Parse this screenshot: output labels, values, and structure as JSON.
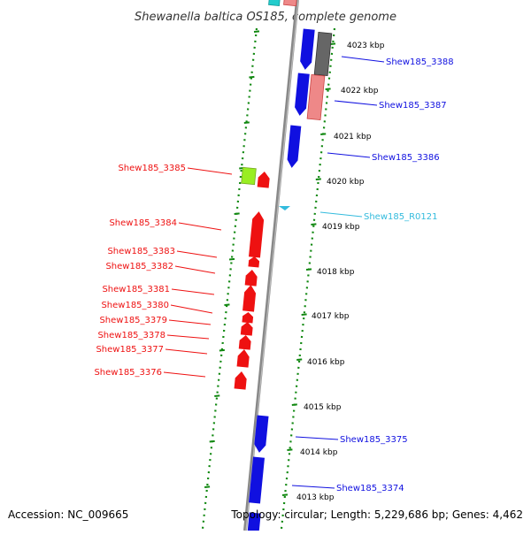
{
  "title": "Shewanella baltica OS185, complete genome",
  "accession_label": "Accession: NC_009665",
  "topology_label": "Topology: circular; Length: 5,229,686 bp; Genes: 4,462",
  "colors": {
    "forward": "#1010e0",
    "reverse": "#ee1111",
    "rna": "#33bbdd",
    "pseudo_gray": "#666666",
    "pseudo_pink": "#ee8888",
    "green_gene": "#99ee22",
    "ruler": "#118811",
    "backbone": "#888888"
  },
  "kbp_ticks": [
    "4023 kbp",
    "4022 kbp",
    "4021 kbp",
    "4020 kbp",
    "4019 kbp",
    "4018 kbp",
    "4017 kbp",
    "4016 kbp",
    "4015 kbp",
    "4014 kbp",
    "4013 kbp"
  ],
  "right_genes": [
    {
      "name": "Shew185_3388",
      "strand": "forward"
    },
    {
      "name": "Shew185_3387",
      "strand": "forward"
    },
    {
      "name": "Shew185_3386",
      "strand": "forward"
    },
    {
      "name": "Shew185_R0121",
      "strand": "rna"
    },
    {
      "name": "Shew185_3375",
      "strand": "forward"
    },
    {
      "name": "Shew185_3374",
      "strand": "forward"
    }
  ],
  "left_genes": [
    {
      "name": "Shew185_3385",
      "strand": "reverse"
    },
    {
      "name": "Shew185_3384",
      "strand": "reverse"
    },
    {
      "name": "Shew185_3383",
      "strand": "reverse"
    },
    {
      "name": "Shew185_3382",
      "strand": "reverse"
    },
    {
      "name": "Shew185_3381",
      "strand": "reverse"
    },
    {
      "name": "Shew185_3380",
      "strand": "reverse"
    },
    {
      "name": "Shew185_3379",
      "strand": "reverse"
    },
    {
      "name": "Shew185_3378",
      "strand": "reverse"
    },
    {
      "name": "Shew185_3377",
      "strand": "reverse"
    },
    {
      "name": "Shew185_3376",
      "strand": "reverse"
    }
  ]
}
